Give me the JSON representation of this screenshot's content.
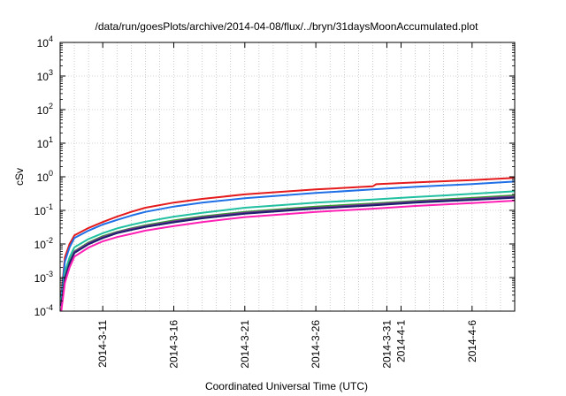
{
  "chart_data": {
    "type": "line",
    "title": "/data/run/goesPlots/archive/2014-04-08/flux/../bryn/31daysMoonAccumulated.plot",
    "xlabel": "Coordinated Universal Time (UTC)",
    "ylabel": "cSv",
    "yscale": "log",
    "ylim": [
      0.0001,
      10000
    ],
    "xlim": [
      "2014-03-08",
      "2014-04-09"
    ],
    "grid": true,
    "yticks": [
      {
        "base": "10",
        "exp": "-4",
        "value": 0.0001
      },
      {
        "base": "10",
        "exp": "-3",
        "value": 0.001
      },
      {
        "base": "10",
        "exp": "-2",
        "value": 0.01
      },
      {
        "base": "10",
        "exp": "-1",
        "value": 0.1
      },
      {
        "base": "10",
        "exp": "0",
        "value": 1
      },
      {
        "base": "10",
        "exp": "1",
        "value": 10
      },
      {
        "base": "10",
        "exp": "2",
        "value": 100
      },
      {
        "base": "10",
        "exp": "3",
        "value": 1000
      },
      {
        "base": "10",
        "exp": "4",
        "value": 10000
      }
    ],
    "xticks": [
      {
        "label": "2014-3-11",
        "date": "2014-03-11"
      },
      {
        "label": "2014-3-16",
        "date": "2014-03-16"
      },
      {
        "label": "2014-3-21",
        "date": "2014-03-21"
      },
      {
        "label": "2014-3-26",
        "date": "2014-03-26"
      },
      {
        "label": "2014-3-31",
        "date": "2014-03-31"
      },
      {
        "label": "2014-4-1",
        "date": "2014-04-01"
      },
      {
        "label": "2014-4-6",
        "date": "2014-04-06"
      }
    ],
    "series": [
      {
        "color": "#e41a1c",
        "points": [
          [
            "2014-03-08T02:00",
            0.0003
          ],
          [
            "2014-03-08T08:00",
            0.004
          ],
          [
            "2014-03-08T16:00",
            0.01
          ],
          [
            "2014-03-09T00:00",
            0.018
          ],
          [
            "2014-03-10T00:00",
            0.03
          ],
          [
            "2014-03-11T00:00",
            0.045
          ],
          [
            "2014-03-12T00:00",
            0.065
          ],
          [
            "2014-03-13T00:00",
            0.09
          ],
          [
            "2014-03-14T00:00",
            0.12
          ],
          [
            "2014-03-16T00:00",
            0.17
          ],
          [
            "2014-03-18T00:00",
            0.22
          ],
          [
            "2014-03-21T00:00",
            0.3
          ],
          [
            "2014-03-26T00:00",
            0.42
          ],
          [
            "2014-03-30T00:00",
            0.52
          ],
          [
            "2014-03-30T06:00",
            0.6
          ],
          [
            "2014-04-02T00:00",
            0.68
          ],
          [
            "2014-04-06T00:00",
            0.8
          ],
          [
            "2014-04-09T00:00",
            0.93
          ]
        ]
      },
      {
        "color": "#1f6fe6",
        "points": [
          [
            "2014-03-08T02:00",
            0.00025
          ],
          [
            "2014-03-08T08:00",
            0.003
          ],
          [
            "2014-03-08T16:00",
            0.008
          ],
          [
            "2014-03-09T00:00",
            0.015
          ],
          [
            "2014-03-10T00:00",
            0.025
          ],
          [
            "2014-03-11T00:00",
            0.038
          ],
          [
            "2014-03-12T00:00",
            0.052
          ],
          [
            "2014-03-13T00:00",
            0.07
          ],
          [
            "2014-03-14T00:00",
            0.09
          ],
          [
            "2014-03-16T00:00",
            0.13
          ],
          [
            "2014-03-18T00:00",
            0.17
          ],
          [
            "2014-03-21T00:00",
            0.23
          ],
          [
            "2014-03-26T00:00",
            0.33
          ],
          [
            "2014-03-30T00:00",
            0.42
          ],
          [
            "2014-04-02T00:00",
            0.5
          ],
          [
            "2014-04-06T00:00",
            0.61
          ],
          [
            "2014-04-09T00:00",
            0.72
          ]
        ]
      },
      {
        "color": "#20c0a0",
        "points": [
          [
            "2014-03-08T02:00",
            0.0002
          ],
          [
            "2014-03-08T08:00",
            0.0015
          ],
          [
            "2014-03-08T16:00",
            0.004
          ],
          [
            "2014-03-09T00:00",
            0.008
          ],
          [
            "2014-03-10T00:00",
            0.014
          ],
          [
            "2014-03-11T00:00",
            0.021
          ],
          [
            "2014-03-12T00:00",
            0.029
          ],
          [
            "2014-03-13T00:00",
            0.037
          ],
          [
            "2014-03-14T00:00",
            0.046
          ],
          [
            "2014-03-16T00:00",
            0.065
          ],
          [
            "2014-03-18T00:00",
            0.085
          ],
          [
            "2014-03-21T00:00",
            0.12
          ],
          [
            "2014-03-26T00:00",
            0.17
          ],
          [
            "2014-03-30T00:00",
            0.21
          ],
          [
            "2014-04-02T00:00",
            0.25
          ],
          [
            "2014-04-06T00:00",
            0.31
          ],
          [
            "2014-04-09T00:00",
            0.37
          ]
        ]
      },
      {
        "color": "#33a02c",
        "points": [
          [
            "2014-03-08T02:00",
            0.00015
          ],
          [
            "2014-03-08T08:00",
            0.001
          ],
          [
            "2014-03-08T16:00",
            0.003
          ],
          [
            "2014-03-09T00:00",
            0.006
          ],
          [
            "2014-03-10T00:00",
            0.011
          ],
          [
            "2014-03-11T00:00",
            0.017
          ],
          [
            "2014-03-12T00:00",
            0.023
          ],
          [
            "2014-03-13T00:00",
            0.029
          ],
          [
            "2014-03-14T00:00",
            0.036
          ],
          [
            "2014-03-16T00:00",
            0.05
          ],
          [
            "2014-03-18T00:00",
            0.066
          ],
          [
            "2014-03-21T00:00",
            0.09
          ],
          [
            "2014-03-26T00:00",
            0.13
          ],
          [
            "2014-03-30T00:00",
            0.16
          ],
          [
            "2014-04-02T00:00",
            0.19
          ],
          [
            "2014-04-06T00:00",
            0.235
          ],
          [
            "2014-04-09T00:00",
            0.28
          ]
        ]
      },
      {
        "color": "#7b3294",
        "points": [
          [
            "2014-03-08T02:00",
            0.00015
          ],
          [
            "2014-03-08T08:00",
            0.001
          ],
          [
            "2014-03-08T16:00",
            0.0028
          ],
          [
            "2014-03-09T00:00",
            0.0058
          ],
          [
            "2014-03-10T00:00",
            0.0105
          ],
          [
            "2014-03-11T00:00",
            0.016
          ],
          [
            "2014-03-12T00:00",
            0.022
          ],
          [
            "2014-03-13T00:00",
            0.028
          ],
          [
            "2014-03-14T00:00",
            0.034
          ],
          [
            "2014-03-16T00:00",
            0.047
          ],
          [
            "2014-03-18T00:00",
            0.062
          ],
          [
            "2014-03-21T00:00",
            0.085
          ],
          [
            "2014-03-26T00:00",
            0.12
          ],
          [
            "2014-03-30T00:00",
            0.15
          ],
          [
            "2014-04-02T00:00",
            0.18
          ],
          [
            "2014-04-06T00:00",
            0.22
          ],
          [
            "2014-04-09T00:00",
            0.26
          ]
        ]
      },
      {
        "color": "#1b1f6e",
        "points": [
          [
            "2014-03-08T02:00",
            0.00014
          ],
          [
            "2014-03-08T08:00",
            0.0009
          ],
          [
            "2014-03-08T16:00",
            0.0026
          ],
          [
            "2014-03-09T00:00",
            0.0054
          ],
          [
            "2014-03-10T00:00",
            0.0098
          ],
          [
            "2014-03-11T00:00",
            0.015
          ],
          [
            "2014-03-12T00:00",
            0.021
          ],
          [
            "2014-03-13T00:00",
            0.026
          ],
          [
            "2014-03-14T00:00",
            0.032
          ],
          [
            "2014-03-16T00:00",
            0.044
          ],
          [
            "2014-03-18T00:00",
            0.058
          ],
          [
            "2014-03-21T00:00",
            0.08
          ],
          [
            "2014-03-26T00:00",
            0.113
          ],
          [
            "2014-03-30T00:00",
            0.14
          ],
          [
            "2014-04-02T00:00",
            0.17
          ],
          [
            "2014-04-06T00:00",
            0.205
          ],
          [
            "2014-04-09T00:00",
            0.24
          ]
        ]
      },
      {
        "color": "#ff1fb4",
        "points": [
          [
            "2014-03-08T02:00",
            0.0001
          ],
          [
            "2014-03-08T08:00",
            0.0007
          ],
          [
            "2014-03-08T16:00",
            0.002
          ],
          [
            "2014-03-09T00:00",
            0.0042
          ],
          [
            "2014-03-10T00:00",
            0.0078
          ],
          [
            "2014-03-11T00:00",
            0.012
          ],
          [
            "2014-03-12T00:00",
            0.016
          ],
          [
            "2014-03-13T00:00",
            0.02
          ],
          [
            "2014-03-14T00:00",
            0.025
          ],
          [
            "2014-03-16T00:00",
            0.034
          ],
          [
            "2014-03-18T00:00",
            0.045
          ],
          [
            "2014-03-21T00:00",
            0.063
          ],
          [
            "2014-03-26T00:00",
            0.09
          ],
          [
            "2014-03-30T00:00",
            0.112
          ],
          [
            "2014-04-02T00:00",
            0.135
          ],
          [
            "2014-04-06T00:00",
            0.165
          ],
          [
            "2014-04-09T00:00",
            0.195
          ]
        ]
      }
    ]
  }
}
